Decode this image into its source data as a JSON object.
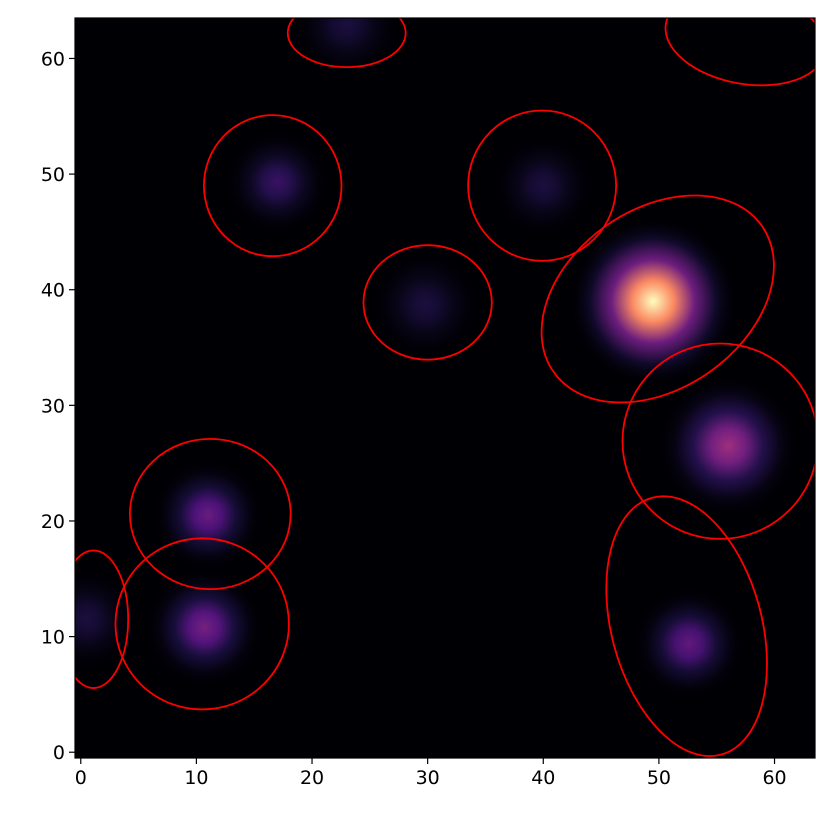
{
  "chart_data": {
    "type": "image",
    "xlim": [
      -0.5,
      63.5
    ],
    "ylim": [
      -0.5,
      63.5
    ],
    "xticks": [
      0,
      10,
      20,
      30,
      40,
      50,
      60
    ],
    "yticks": [
      0,
      10,
      20,
      30,
      40,
      50,
      60
    ],
    "background": "#000004",
    "ellipse_color": "#ff0000",
    "sources": [
      {
        "x": 23,
        "y": 63,
        "amplitude": 0.12,
        "sigma": 1.6
      },
      {
        "x": 17,
        "y": 49.3,
        "amplitude": 0.2,
        "sigma": 1.5
      },
      {
        "x": 40,
        "y": 49,
        "amplitude": 0.12,
        "sigma": 1.5
      },
      {
        "x": 29.8,
        "y": 38.7,
        "amplitude": 0.12,
        "sigma": 1.6
      },
      {
        "x": 49.5,
        "y": 39,
        "amplitude": 1.0,
        "sigma": 2.4
      },
      {
        "x": 56,
        "y": 26.5,
        "amplitude": 0.45,
        "sigma": 2.0
      },
      {
        "x": 11,
        "y": 20.5,
        "amplitude": 0.32,
        "sigma": 1.6
      },
      {
        "x": 10.7,
        "y": 10.8,
        "amplitude": 0.35,
        "sigma": 1.7
      },
      {
        "x": 0.5,
        "y": 11.5,
        "amplitude": 0.12,
        "sigma": 1.5
      },
      {
        "x": 52.6,
        "y": 9.4,
        "amplitude": 0.3,
        "sigma": 1.6
      }
    ],
    "ellipses": [
      {
        "x": 23,
        "y": 62.2,
        "width": 10.2,
        "height": 5.9,
        "angle": 0
      },
      {
        "x": 16.6,
        "y": 49,
        "width": 11.9,
        "height": 12.2,
        "angle": 0
      },
      {
        "x": 39.9,
        "y": 49,
        "width": 12.8,
        "height": 13,
        "angle": 0
      },
      {
        "x": 30,
        "y": 38.9,
        "width": 11.1,
        "height": 9.9,
        "angle": 0
      },
      {
        "x": 49.9,
        "y": 39.2,
        "width": 22,
        "height": 15.5,
        "angle": 35
      },
      {
        "x": 55.3,
        "y": 26.9,
        "width": 16.9,
        "height": 16.9,
        "angle": 0
      },
      {
        "x": 57.5,
        "y": 61.8,
        "width": 14,
        "height": 8,
        "angle": -10
      },
      {
        "x": 11.2,
        "y": 20.6,
        "width": 13.9,
        "height": 13,
        "angle": 0
      },
      {
        "x": 10.5,
        "y": 11.1,
        "width": 15,
        "height": 14.8,
        "angle": 0
      },
      {
        "x": 1.1,
        "y": 11.5,
        "width": 6,
        "height": 11.9,
        "angle": 0
      },
      {
        "x": 52.4,
        "y": 10.9,
        "width": 13,
        "height": 23,
        "angle": 15
      }
    ]
  }
}
